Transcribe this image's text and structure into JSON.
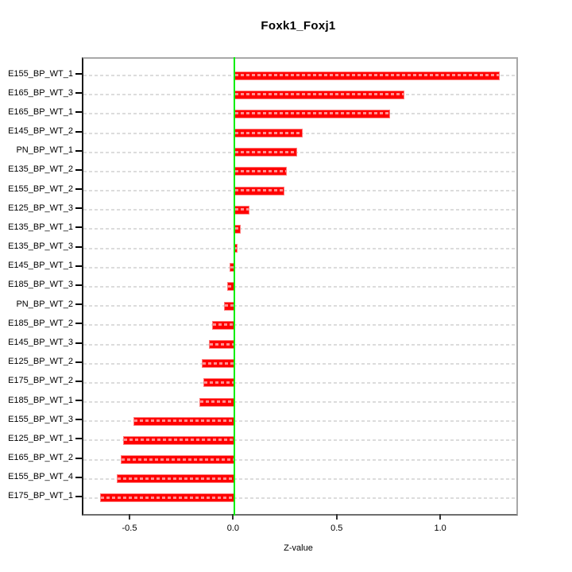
{
  "title": "Foxk1_Foxj1",
  "xlabel": "Z-value",
  "colors": {
    "bar": "#ff0000",
    "bar_edge": "#ff7a7a",
    "bar_dash": "#ff9090",
    "zero_line": "#00ee00",
    "grid": "#dcdcdc",
    "box_gray": "#a8a8a8",
    "axis_dark": "#333333"
  },
  "chart_data": {
    "type": "bar",
    "orientation": "horizontal",
    "title": "Foxk1_Foxj1",
    "xlabel": "Z-value",
    "ylabel": "",
    "xlim": [
      -0.73,
      1.36
    ],
    "x_ticks": [
      -0.5,
      0.0,
      0.5,
      1.0
    ],
    "x_tick_labels": [
      "-0.5",
      "0.0",
      "0.5",
      "1.0"
    ],
    "grid": true,
    "grid_style": "dashed",
    "zero_reference_line": 0.0,
    "categories": [
      "E155_BP_WT_1",
      "E165_BP_WT_3",
      "E165_BP_WT_1",
      "E145_BP_WT_2",
      "PN_BP_WT_1",
      "E135_BP_WT_2",
      "E155_BP_WT_2",
      "E125_BP_WT_3",
      "E135_BP_WT_1",
      "E135_BP_WT_3",
      "E145_BP_WT_1",
      "E185_BP_WT_3",
      "PN_BP_WT_2",
      "E185_BP_WT_2",
      "E145_BP_WT_3",
      "E125_BP_WT_2",
      "E175_BP_WT_2",
      "E185_BP_WT_1",
      "E155_BP_WT_3",
      "E125_BP_WT_1",
      "E165_BP_WT_2",
      "E155_BP_WT_4",
      "E175_BP_WT_1"
    ],
    "values": [
      1.28,
      0.82,
      0.75,
      0.33,
      0.3,
      0.25,
      0.24,
      0.07,
      0.03,
      0.015,
      -0.025,
      -0.035,
      -0.05,
      -0.11,
      -0.125,
      -0.16,
      -0.15,
      -0.17,
      -0.49,
      -0.54,
      -0.55,
      -0.57,
      -0.65
    ]
  }
}
